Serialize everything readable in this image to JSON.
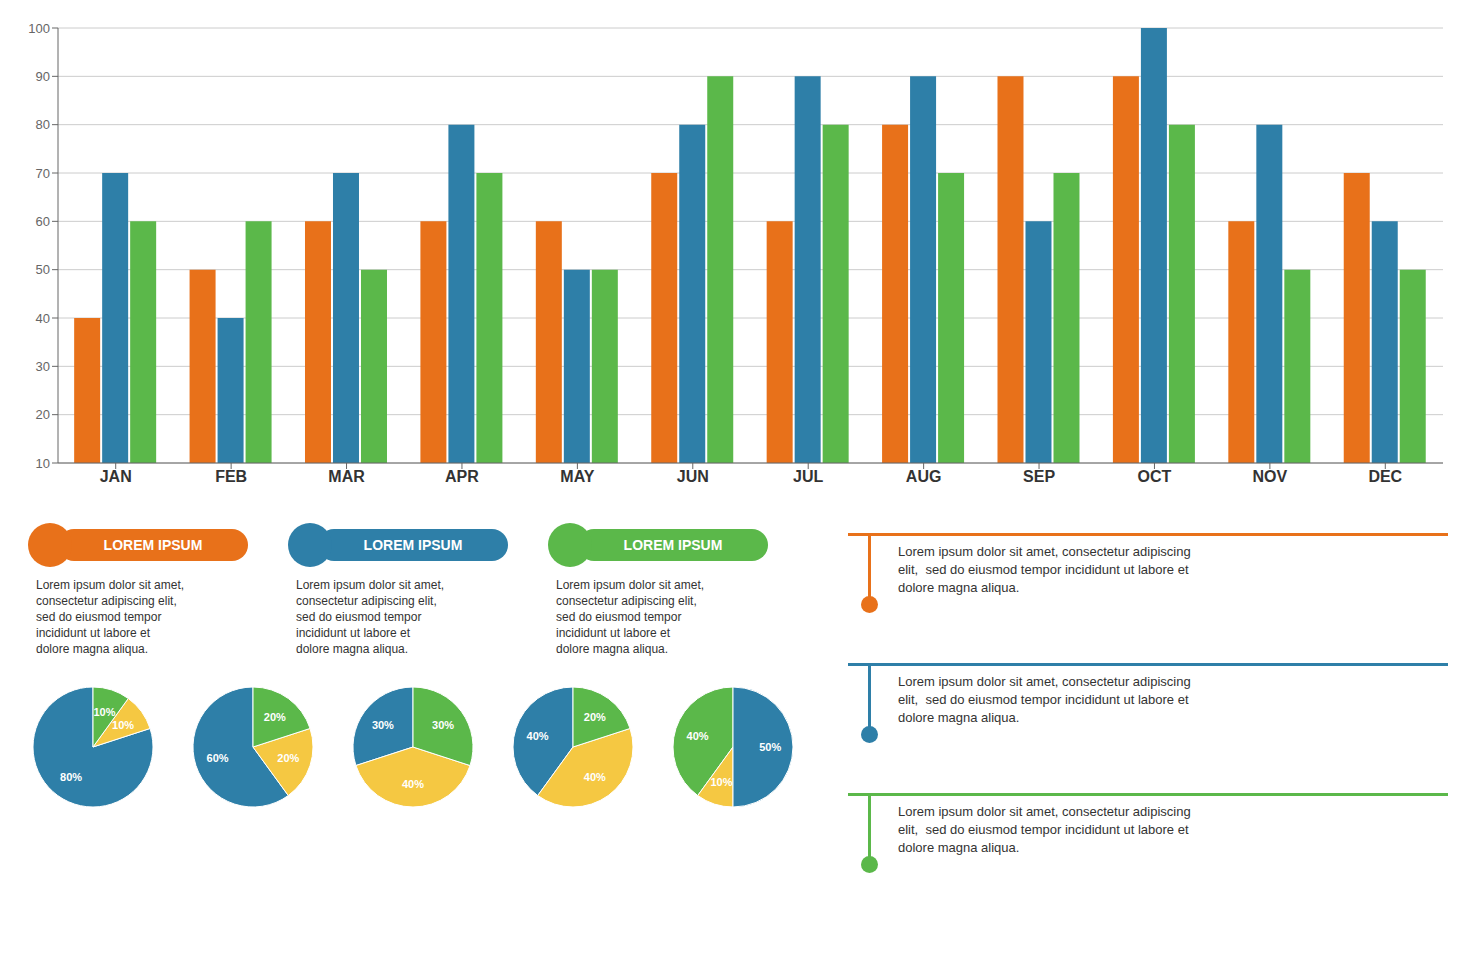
{
  "chart_data": [
    {
      "type": "bar",
      "categories": [
        "JAN",
        "FEB",
        "MAR",
        "APR",
        "MAY",
        "JUN",
        "JUL",
        "AUG",
        "SEP",
        "OCT",
        "NOV",
        "DEC"
      ],
      "series": [
        {
          "name": "LOREM IPSUM",
          "color": "#E8711A",
          "values": [
            40,
            50,
            60,
            60,
            60,
            70,
            60,
            80,
            90,
            90,
            60,
            70
          ]
        },
        {
          "name": "LOREM IPSUM",
          "color": "#2E7FA8",
          "values": [
            70,
            40,
            70,
            80,
            50,
            80,
            90,
            90,
            60,
            100,
            80,
            60
          ]
        },
        {
          "name": "LOREM IPSUM",
          "color": "#5BB84A",
          "values": [
            60,
            60,
            50,
            70,
            50,
            90,
            80,
            70,
            70,
            80,
            50,
            50
          ]
        }
      ],
      "ylim": [
        10,
        100
      ],
      "yticks": [
        10,
        20,
        30,
        40,
        50,
        60,
        70,
        80,
        90,
        100
      ],
      "grid": true,
      "annotations": [
        "Lorem ipsum dolor sit amet,\nconsectetur adipiscing elit,\nsed do eiusmod tempor\nincididunt ut labore et\ndolore magna aliqua.",
        "Lorem ipsum dolor sit amet,\nconsectetur adipiscing elit,\nsed do eiusmod tempor\nincididunt ut labore et\ndolore magna aliqua.",
        "Lorem ipsum dolor sit amet,\nconsectetur adipiscing elit,\nsed do eiusmod tempor\nincididunt ut labore et\ndolore magna aliqua.",
        "Lorem ipsum dolor sit amet, consectetur adipiscing\nelit,  sed do eiusmod tempor incididunt ut labore et\ndolore magna aliqua.",
        "Lorem ipsum dolor sit amet, consectetur adipiscing\nelit,  sed do eiusmod tempor incididunt ut labore et\ndolore magna aliqua.",
        "Lorem ipsum dolor sit amet, consectetur adipiscing\nelit,  sed do eiusmod tempor incididunt ut labore et\ndolore magna aliqua."
      ]
    },
    {
      "type": "pie",
      "values": [
        80,
        10,
        10
      ],
      "colors": [
        "#2E7FA8",
        "#F5C842",
        "#5BB84A"
      ],
      "value_labels": [
        "80%",
        "10%",
        "10%"
      ],
      "data_labels": true
    },
    {
      "type": "pie",
      "values": [
        60,
        20,
        20
      ],
      "colors": [
        "#2E7FA8",
        "#F5C842",
        "#5BB84A"
      ],
      "value_labels": [
        "60%",
        "20%",
        "20%"
      ],
      "data_labels": true
    },
    {
      "type": "pie",
      "values": [
        30,
        40,
        30
      ],
      "colors": [
        "#2E7FA8",
        "#F5C842",
        "#5BB84A"
      ],
      "value_labels": [
        "30%",
        "40%",
        "30%"
      ],
      "data_labels": true
    },
    {
      "type": "pie",
      "values": [
        40,
        40,
        20
      ],
      "colors": [
        "#2E7FA8",
        "#F5C842",
        "#5BB84A"
      ],
      "value_labels": [
        "40%",
        "40%",
        "20%"
      ],
      "data_labels": true
    },
    {
      "type": "pie",
      "values": [
        40,
        10,
        50
      ],
      "colors": [
        "#5BB84A",
        "#F5C842",
        "#2E7FA8"
      ],
      "value_labels": [
        "40%",
        "10%",
        "50%"
      ],
      "data_labels": true
    }
  ]
}
